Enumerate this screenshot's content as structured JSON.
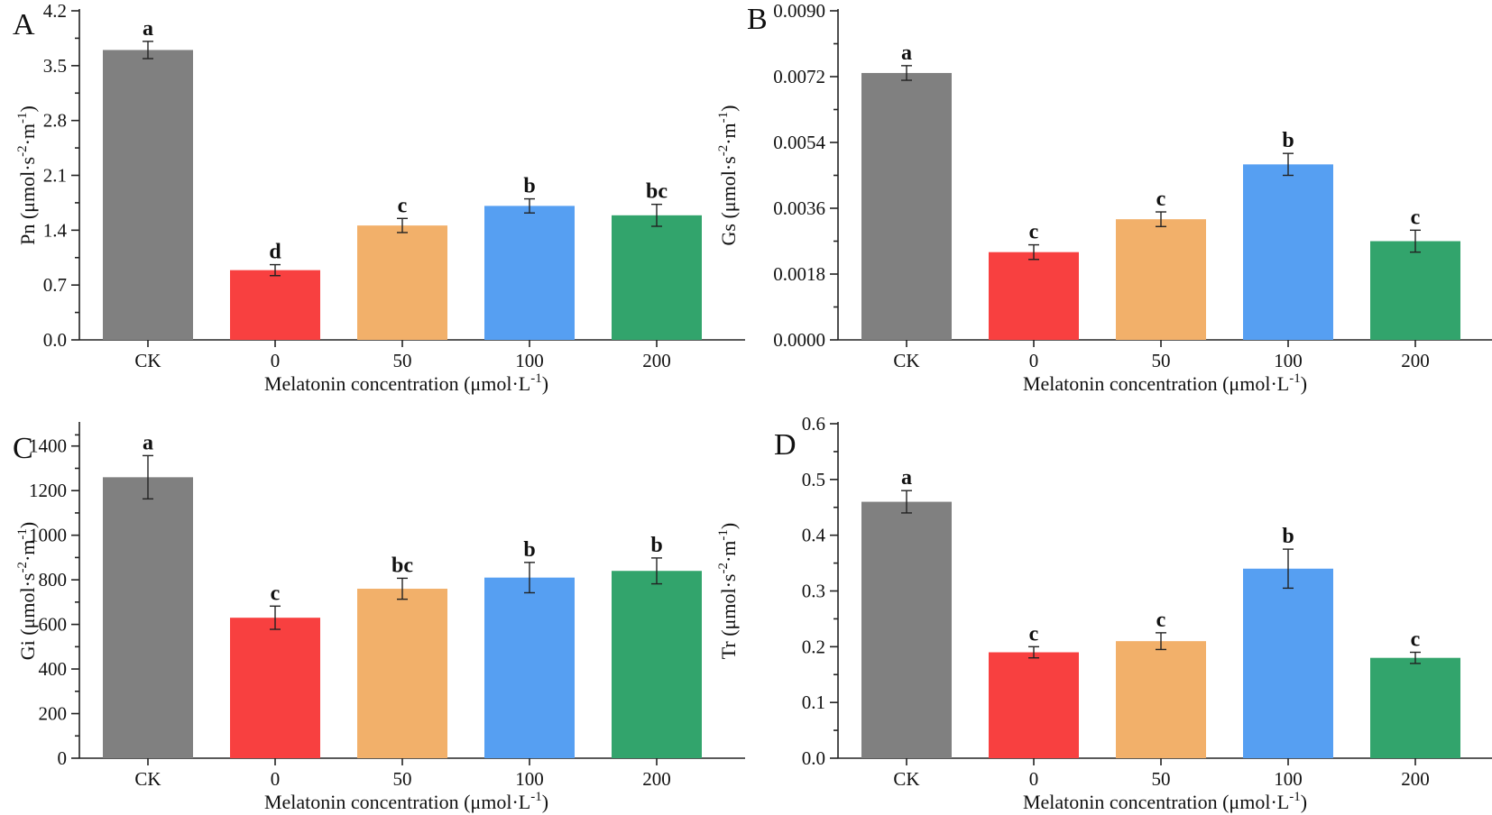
{
  "figure": {
    "series_colors": [
      "#808080",
      "#f84040",
      "#f2b06a",
      "#569ff2",
      "#32a46c"
    ]
  },
  "chart_data": [
    {
      "panel": "A",
      "type": "bar",
      "categories": [
        "CK",
        "0",
        "50",
        "100",
        "200"
      ],
      "values": [
        3.7,
        0.89,
        1.46,
        1.71,
        1.59
      ],
      "errors": [
        0.11,
        0.07,
        0.09,
        0.09,
        0.14
      ],
      "significance": [
        "a",
        "d",
        "c",
        "b",
        "bc"
      ],
      "ylim": [
        0,
        4.2
      ],
      "yticks": [
        0.0,
        0.7,
        1.4,
        2.1,
        2.8,
        3.5,
        4.2
      ],
      "ytick_labels": [
        "0.0",
        "0.7",
        "1.4",
        "2.1",
        "2.8",
        "3.5",
        "4.2"
      ],
      "ylabel_main": "Pn (μmol·s",
      "ylabel_unit_sup1": "-2",
      "ylabel_mid": "·m",
      "ylabel_unit_sup2": "-1",
      "ylabel_end": ")",
      "xlabel_main": "Melatonin concentration (μmol·L",
      "xlabel_sup": "-1",
      "xlabel_end": ")"
    },
    {
      "panel": "B",
      "type": "bar",
      "categories": [
        "CK",
        "0",
        "50",
        "100",
        "200"
      ],
      "values": [
        0.0073,
        0.0024,
        0.0033,
        0.0048,
        0.0027
      ],
      "errors": [
        0.0002,
        0.0002,
        0.0002,
        0.0003,
        0.0003
      ],
      "significance": [
        "a",
        "c",
        "c",
        "b",
        "c"
      ],
      "ylim": [
        0,
        0.009
      ],
      "yticks": [
        0.0,
        0.0018,
        0.0036,
        0.0054,
        0.0072,
        0.009
      ],
      "ytick_labels": [
        "0.0000",
        "0.0018",
        "0.0036",
        "0.0054",
        "0.0072",
        "0.0090"
      ],
      "ylabel_main": "Gs (μmol·s",
      "ylabel_unit_sup1": "-2",
      "ylabel_mid": "·m",
      "ylabel_unit_sup2": "-1",
      "ylabel_end": ")",
      "xlabel_main": "Melatonin concentration (μmol·L",
      "xlabel_sup": "-1",
      "xlabel_end": ")"
    },
    {
      "panel": "C",
      "type": "bar",
      "categories": [
        "CK",
        "0",
        "50",
        "100",
        "200"
      ],
      "values": [
        1260,
        630,
        760,
        810,
        840
      ],
      "errors": [
        97,
        52,
        47,
        68,
        58
      ],
      "significance": [
        "a",
        "c",
        "bc",
        "b",
        "b"
      ],
      "ylim": [
        0,
        1500
      ],
      "yticks": [
        0,
        200,
        400,
        600,
        800,
        1000,
        1200,
        1400
      ],
      "ytick_labels": [
        "0",
        "200",
        "400",
        "600",
        "800",
        "1000",
        "1200",
        "1400"
      ],
      "ylabel_main": "Gi (μmol·s",
      "ylabel_unit_sup1": "-2",
      "ylabel_mid": "·m",
      "ylabel_unit_sup2": "-1",
      "ylabel_end": ")",
      "xlabel_main": "Melatonin concentration (μmol·L",
      "xlabel_sup": "-1",
      "xlabel_end": ")"
    },
    {
      "panel": "D",
      "type": "bar",
      "categories": [
        "CK",
        "0",
        "50",
        "100",
        "200"
      ],
      "values": [
        0.46,
        0.19,
        0.21,
        0.34,
        0.18
      ],
      "errors": [
        0.02,
        0.01,
        0.015,
        0.035,
        0.01
      ],
      "significance": [
        "a",
        "c",
        "c",
        "b",
        "c"
      ],
      "ylim": [
        0,
        0.6
      ],
      "yticks": [
        0.0,
        0.1,
        0.2,
        0.3,
        0.4,
        0.5,
        0.6
      ],
      "ytick_labels": [
        "0.0",
        "0.1",
        "0.2",
        "0.3",
        "0.4",
        "0.5",
        "0.6"
      ],
      "ylabel_main": "Tr (μmol·s",
      "ylabel_unit_sup1": "-2",
      "ylabel_mid": "·m",
      "ylabel_unit_sup2": "-1",
      "ylabel_end": ")",
      "xlabel_main": "Melatonin concentration (μmol·L",
      "xlabel_sup": "-1",
      "xlabel_end": ")"
    }
  ]
}
